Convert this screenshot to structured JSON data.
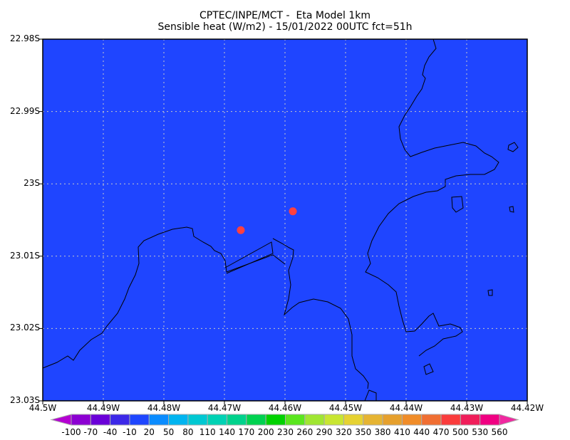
{
  "title": {
    "line1": "CPTEC/INPE/MCT -  Eta Model 1km",
    "line2": "Sensible heat (W/m2) - 15/01/2022 00UTC fct=51h"
  },
  "map": {
    "background_color": "#1f45ff",
    "coastline_color": "#000000",
    "marker_color": "#ff4040",
    "lat_labels": [
      "22.98S",
      "22.99S",
      "23S",
      "23.01S",
      "23.02S",
      "23.03S"
    ],
    "lon_labels": [
      "44.5W",
      "44.49W",
      "44.48W",
      "44.47W",
      "44.46W",
      "44.45W",
      "44.44W",
      "44.43W",
      "44.42W"
    ],
    "markers": [
      {
        "lon": -44.4673,
        "lat": -23.0064
      },
      {
        "lon": -44.4587,
        "lat": -23.0038
      }
    ]
  },
  "colorbar": {
    "labels": [
      "-100",
      "-70",
      "-40",
      "-10",
      "20",
      "50",
      "80",
      "110",
      "140",
      "170",
      "200",
      "230",
      "260",
      "290",
      "320",
      "350",
      "380",
      "410",
      "440",
      "470",
      "500",
      "530",
      "560"
    ],
    "colors": [
      "#8c00d2",
      "#6a00d8",
      "#3c28e8",
      "#1e46ff",
      "#0a8cff",
      "#00b4f0",
      "#00c8d2",
      "#00d2b4",
      "#00d28c",
      "#00d250",
      "#00d200",
      "#5ae61e",
      "#a0e632",
      "#c8e632",
      "#e6d232",
      "#e6b432",
      "#e6a02d",
      "#f08c28",
      "#f06e32",
      "#fa3c3c",
      "#f01e5a",
      "#f00082"
    ],
    "low_color": "#b400d2",
    "high_color": "#f028a0"
  }
}
